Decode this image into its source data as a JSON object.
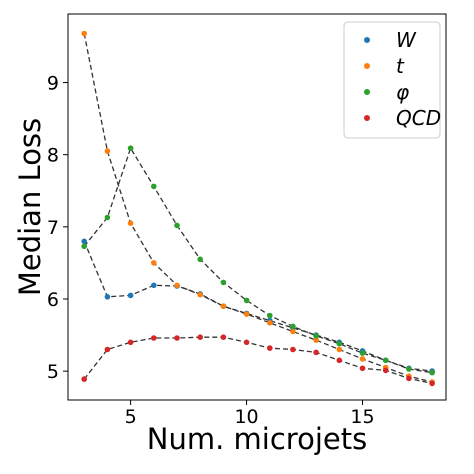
{
  "chart_data": {
    "type": "scatter",
    "title": "",
    "xlabel": "Num. microjets",
    "ylabel": "Median Loss",
    "xlim": [
      2.3,
      18.6
    ],
    "ylim": [
      4.6,
      9.95
    ],
    "xticks": [
      5,
      10,
      15
    ],
    "yticks": [
      5,
      6,
      7,
      8,
      9
    ],
    "grid": false,
    "legend_position": "top-right",
    "x": [
      3,
      4,
      5,
      6,
      7,
      8,
      9,
      10,
      11,
      12,
      13,
      14,
      15,
      16,
      17,
      18
    ],
    "series": [
      {
        "name": "W",
        "color": "#1f77b4",
        "values": [
          6.8,
          6.03,
          6.05,
          6.19,
          6.18,
          6.07,
          5.9,
          5.8,
          5.7,
          5.6,
          5.5,
          5.4,
          5.28,
          5.15,
          5.04,
          5.0
        ]
      },
      {
        "name": "t",
        "color": "#ff7f0e",
        "values": [
          9.68,
          8.05,
          7.05,
          6.5,
          6.19,
          6.06,
          5.9,
          5.79,
          5.67,
          5.55,
          5.43,
          5.3,
          5.17,
          5.05,
          4.93,
          4.85
        ]
      },
      {
        "name": "φ",
        "color": "#2ca02c",
        "values": [
          6.73,
          7.13,
          8.09,
          7.56,
          7.02,
          6.55,
          6.23,
          5.98,
          5.77,
          5.62,
          5.49,
          5.38,
          5.25,
          5.15,
          5.03,
          4.98
        ]
      },
      {
        "name": "QCD",
        "color": "#d62728",
        "values": [
          4.89,
          5.3,
          5.4,
          5.46,
          5.46,
          5.47,
          5.47,
          5.4,
          5.32,
          5.3,
          5.26,
          5.15,
          5.04,
          5.01,
          4.9,
          4.83
        ]
      }
    ]
  }
}
